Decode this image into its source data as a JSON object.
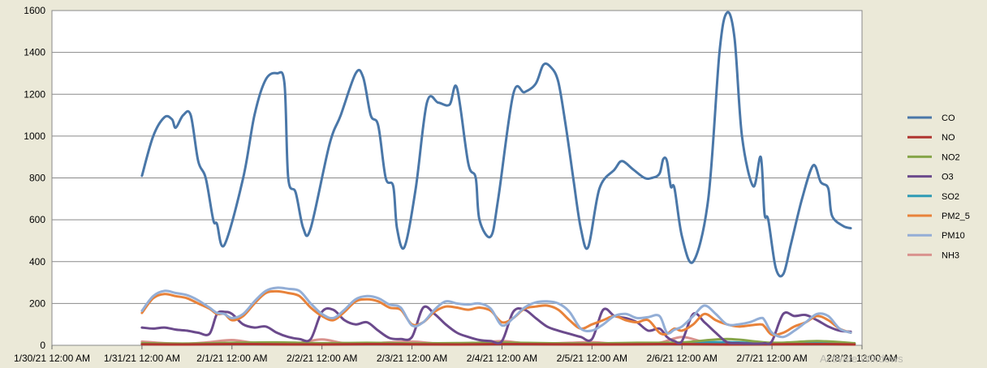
{
  "watermark": "Activate Windows",
  "chart_data": {
    "type": "line",
    "title": "",
    "xlabel": "",
    "ylabel": "",
    "ylim": [
      0,
      1600
    ],
    "yticks": [
      0,
      200,
      400,
      600,
      800,
      1000,
      1200,
      1400,
      1600
    ],
    "xticks": [
      "1/30/21 12:00 AM",
      "1/31/21 12:00 AM",
      "2/1/21 12:00 AM",
      "2/2/21 12:00 AM",
      "2/3/21 12:00 AM",
      "2/4/21 12:00 AM",
      "2/5/21 12:00 AM",
      "2/6/21 12:00 AM",
      "2/7/21 12:00 AM",
      "2/8/21 12:00 AM"
    ],
    "xlim": [
      "1/30/21 12:00 AM",
      "2/8/21 12:00 AM"
    ],
    "grid": true,
    "legend_position": "right",
    "series": [
      {
        "name": "CO",
        "color": "#4a77a8",
        "x": [
          "1/31/21 12:00 AM",
          "1/31/21 3:00 AM",
          "1/31/21 6:00 AM",
          "1/31/21 8:00 AM",
          "1/31/21 9:00 AM",
          "1/31/21 11:00 AM",
          "1/31/21 1:00 PM",
          "1/31/21 3:00 PM",
          "1/31/21 5:00 PM",
          "1/31/21 7:00 PM",
          "1/31/21 8:00 PM",
          "1/31/21 10:00 PM",
          "2/1/21 3:00 AM",
          "2/1/21 6:00 AM",
          "2/1/21 9:00 AM",
          "2/1/21 12:00 PM",
          "2/1/21 2:00 PM",
          "2/1/21 3:00 PM",
          "2/1/21 5:00 PM",
          "2/1/21 7:00 PM",
          "2/1/21 9:00 PM",
          "2/2/21 2:00 AM",
          "2/2/21 5:00 AM",
          "2/2/21 9:00 AM",
          "2/2/21 11:00 AM",
          "2/2/21 1:00 PM",
          "2/2/21 3:00 PM",
          "2/2/21 5:00 PM",
          "2/2/21 7:00 PM",
          "2/2/21 8:00 PM",
          "2/2/21 10:00 PM",
          "2/3/21 1:00 AM",
          "2/3/21 4:00 AM",
          "2/3/21 7:00 AM",
          "2/3/21 10:00 AM",
          "2/3/21 12:00 PM",
          "2/3/21 3:00 PM",
          "2/3/21 5:00 PM",
          "2/3/21 6:00 PM",
          "2/3/21 9:00 PM",
          "2/3/21 11:00 PM",
          "2/4/21 3:00 AM",
          "2/4/21 6:00 AM",
          "2/4/21 9:00 AM",
          "2/4/21 11:00 AM",
          "2/4/21 1:00 PM",
          "2/4/21 3:00 PM",
          "2/4/21 5:00 PM",
          "2/4/21 7:00 PM",
          "2/4/21 9:00 PM",
          "2/4/21 11:00 PM",
          "2/5/21 2:00 AM",
          "2/5/21 6:00 AM",
          "2/5/21 8:00 AM",
          "2/5/21 11:00 AM",
          "2/5/21 2:00 PM",
          "2/5/21 4:00 PM",
          "2/5/21 6:00 PM",
          "2/5/21 7:00 PM",
          "2/5/21 8:00 PM",
          "2/5/21 9:00 PM",
          "2/5/21 10:00 PM",
          "2/6/21 12:00 AM",
          "2/6/21 3:00 AM",
          "2/6/21 7:00 AM",
          "2/6/21 10:00 AM",
          "2/6/21 12:00 PM",
          "2/6/21 2:00 PM",
          "2/6/21 4:00 PM",
          "2/6/21 7:00 PM",
          "2/6/21 9:00 PM",
          "2/6/21 10:00 PM",
          "2/6/21 11:00 PM",
          "2/7/21 1:00 AM",
          "2/7/21 3:00 AM",
          "2/7/21 5:00 AM",
          "2/7/21 8:00 AM",
          "2/7/21 11:00 AM",
          "2/7/21 1:00 PM",
          "2/7/21 3:00 PM",
          "2/7/21 4:00 PM",
          "2/7/21 7:00 PM",
          "2/7/21 9:00 PM"
        ],
        "values": [
          810,
          1000,
          1090,
          1080,
          1040,
          1100,
          1100,
          880,
          800,
          600,
          580,
          480,
          800,
          1100,
          1270,
          1300,
          1250,
          800,
          730,
          560,
          560,
          960,
          1100,
          1300,
          1280,
          1100,
          1050,
          800,
          760,
          560,
          470,
          750,
          1160,
          1160,
          1150,
          1230,
          870,
          800,
          600,
          520,
          700,
          1200,
          1210,
          1250,
          1340,
          1330,
          1260,
          1050,
          800,
          560,
          470,
          750,
          840,
          880,
          840,
          800,
          800,
          820,
          890,
          880,
          760,
          750,
          520,
          400,
          700,
          1400,
          1590,
          1470,
          1000,
          760,
          900,
          630,
          600,
          370,
          340,
          480,
          700,
          860,
          780,
          750,
          620,
          570,
          560
        ]
      },
      {
        "name": "NO",
        "color": "#b0352f",
        "x": [
          "1/31/21 12:00 AM",
          "1/31/21 12:00 PM",
          "2/1/21 12:00 AM",
          "2/1/21 12:00 PM",
          "2/2/21 12:00 AM",
          "2/2/21 12:00 PM",
          "2/3/21 12:00 AM",
          "2/3/21 12:00 PM",
          "2/4/21 12:00 AM",
          "2/4/21 12:00 PM",
          "2/5/21 12:00 AM",
          "2/5/21 12:00 PM",
          "2/6/21 12:00 AM",
          "2/6/21 12:00 PM",
          "2/7/21 12:00 AM",
          "2/7/21 12:00 PM",
          "2/7/21 10:00 PM"
        ],
        "values": [
          5,
          4,
          6,
          5,
          4,
          6,
          5,
          4,
          6,
          5,
          4,
          5,
          6,
          4,
          5,
          6,
          4
        ]
      },
      {
        "name": "NO2",
        "color": "#86a548",
        "x": [
          "1/31/21 12:00 AM",
          "1/31/21 12:00 PM",
          "2/1/21 12:00 AM",
          "2/1/21 12:00 PM",
          "2/2/21 12:00 AM",
          "2/2/21 12:00 PM",
          "2/3/21 12:00 AM",
          "2/3/21 12:00 PM",
          "2/4/21 12:00 AM",
          "2/4/21 12:00 PM",
          "2/5/21 12:00 AM",
          "2/5/21 12:00 PM",
          "2/6/21 12:00 AM",
          "2/6/21 12:00 PM",
          "2/7/21 12:00 AM",
          "2/7/21 12:00 PM",
          "2/7/21 10:00 PM"
        ],
        "values": [
          10,
          8,
          12,
          14,
          10,
          12,
          9,
          11,
          13,
          10,
          9,
          12,
          14,
          30,
          12,
          20,
          10
        ]
      },
      {
        "name": "O3",
        "color": "#6b4a8c",
        "x": [
          "1/31/21 12:00 AM",
          "1/31/21 3:00 AM",
          "1/31/21 6:00 AM",
          "1/31/21 9:00 AM",
          "1/31/21 12:00 PM",
          "1/31/21 3:00 PM",
          "1/31/21 6:00 PM",
          "1/31/21 8:00 PM",
          "1/31/21 10:00 PM",
          "2/1/21 12:00 AM",
          "2/1/21 3:00 AM",
          "2/1/21 6:00 AM",
          "2/1/21 9:00 AM",
          "2/1/21 12:00 PM",
          "2/1/21 3:00 PM",
          "2/1/21 6:00 PM",
          "2/1/21 9:00 PM",
          "2/2/21 12:00 AM",
          "2/2/21 3:00 AM",
          "2/2/21 6:00 AM",
          "2/2/21 9:00 AM",
          "2/2/21 12:00 PM",
          "2/2/21 3:00 PM",
          "2/2/21 6:00 PM",
          "2/2/21 9:00 PM",
          "2/3/21 12:00 AM",
          "2/3/21 3:00 AM",
          "2/3/21 6:00 AM",
          "2/3/21 9:00 AM",
          "2/3/21 12:00 PM",
          "2/3/21 3:00 PM",
          "2/3/21 6:00 PM",
          "2/3/21 9:00 PM",
          "2/4/21 12:00 AM",
          "2/4/21 3:00 AM",
          "2/4/21 6:00 AM",
          "2/4/21 9:00 AM",
          "2/4/21 12:00 PM",
          "2/4/21 3:00 PM",
          "2/4/21 6:00 PM",
          "2/4/21 9:00 PM",
          "2/5/21 12:00 AM",
          "2/5/21 3:00 AM",
          "2/5/21 6:00 AM",
          "2/5/21 9:00 AM",
          "2/5/21 12:00 PM",
          "2/5/21 3:00 PM",
          "2/5/21 6:00 PM",
          "2/5/21 8:00 PM",
          "2/5/21 10:00 PM",
          "2/6/21 12:00 AM",
          "2/6/21 3:00 AM",
          "2/6/21 6:00 AM",
          "2/6/21 9:00 AM",
          "2/6/21 12:00 PM",
          "2/6/21 3:00 PM",
          "2/6/21 6:00 PM",
          "2/6/21 9:00 PM",
          "2/6/21 10:00 PM",
          "2/7/21 12:00 AM",
          "2/7/21 3:00 AM",
          "2/7/21 6:00 AM",
          "2/7/21 9:00 AM",
          "2/7/21 12:00 PM",
          "2/7/21 3:00 PM",
          "2/7/21 6:00 PM",
          "2/7/21 9:00 PM"
        ],
        "values": [
          85,
          80,
          85,
          75,
          70,
          60,
          55,
          150,
          160,
          150,
          100,
          85,
          90,
          60,
          40,
          30,
          30,
          160,
          170,
          120,
          100,
          110,
          70,
          35,
          30,
          40,
          180,
          150,
          100,
          60,
          40,
          25,
          20,
          20,
          160,
          170,
          130,
          90,
          70,
          55,
          40,
          30,
          170,
          140,
          130,
          110,
          70,
          80,
          40,
          20,
          20,
          150,
          110,
          60,
          15,
          10,
          8,
          8,
          10,
          20,
          150,
          140,
          145,
          120,
          90,
          70,
          65
        ]
      },
      {
        "name": "SO2",
        "color": "#2e9bb5",
        "x": [
          "1/31/21 12:00 AM",
          "1/31/21 12:00 PM",
          "2/1/21 12:00 AM",
          "2/1/21 12:00 PM",
          "2/2/21 12:00 AM",
          "2/2/21 12:00 PM",
          "2/3/21 12:00 AM",
          "2/3/21 12:00 PM",
          "2/4/21 12:00 AM",
          "2/4/21 12:00 PM",
          "2/5/21 12:00 AM",
          "2/5/21 12:00 PM",
          "2/6/21 12:00 AM",
          "2/6/21 12:00 PM",
          "2/7/21 12:00 AM",
          "2/7/21 12:00 PM",
          "2/7/21 10:00 PM"
        ],
        "values": [
          8,
          6,
          10,
          12,
          8,
          10,
          7,
          9,
          11,
          8,
          7,
          10,
          12,
          15,
          9,
          14,
          8
        ]
      },
      {
        "name": "PM2_5",
        "color": "#e8823a",
        "x": [
          "1/31/21 12:00 AM",
          "1/31/21 3:00 AM",
          "1/31/21 6:00 AM",
          "1/31/21 9:00 AM",
          "1/31/21 12:00 PM",
          "1/31/21 3:00 PM",
          "1/31/21 6:00 PM",
          "1/31/21 8:00 PM",
          "1/31/21 10:00 PM",
          "2/1/21 12:00 AM",
          "2/1/21 3:00 AM",
          "2/1/21 6:00 AM",
          "2/1/21 9:00 AM",
          "2/1/21 12:00 PM",
          "2/1/21 3:00 PM",
          "2/1/21 6:00 PM",
          "2/1/21 9:00 PM",
          "2/2/21 12:00 AM",
          "2/2/21 3:00 AM",
          "2/2/21 6:00 AM",
          "2/2/21 9:00 AM",
          "2/2/21 12:00 PM",
          "2/2/21 3:00 PM",
          "2/2/21 6:00 PM",
          "2/2/21 9:00 PM",
          "2/3/21 12:00 AM",
          "2/3/21 3:00 AM",
          "2/3/21 6:00 AM",
          "2/3/21 9:00 AM",
          "2/3/21 12:00 PM",
          "2/3/21 3:00 PM",
          "2/3/21 6:00 PM",
          "2/3/21 9:00 PM",
          "2/4/21 12:00 AM",
          "2/4/21 3:00 AM",
          "2/4/21 6:00 AM",
          "2/4/21 9:00 AM",
          "2/4/21 12:00 PM",
          "2/4/21 3:00 PM",
          "2/4/21 6:00 PM",
          "2/4/21 9:00 PM",
          "2/5/21 12:00 AM",
          "2/5/21 3:00 AM",
          "2/5/21 6:00 AM",
          "2/5/21 9:00 AM",
          "2/5/21 12:00 PM",
          "2/5/21 3:00 PM",
          "2/5/21 6:00 PM",
          "2/5/21 8:00 PM",
          "2/5/21 10:00 PM",
          "2/6/21 12:00 AM",
          "2/6/21 3:00 AM",
          "2/6/21 6:00 AM",
          "2/6/21 9:00 AM",
          "2/6/21 12:00 PM",
          "2/6/21 3:00 PM",
          "2/6/21 6:00 PM",
          "2/6/21 9:00 PM",
          "2/6/21 10:00 PM",
          "2/7/21 12:00 AM",
          "2/7/21 3:00 AM",
          "2/7/21 6:00 AM",
          "2/7/21 9:00 AM",
          "2/7/21 12:00 PM",
          "2/7/21 3:00 PM",
          "2/7/21 6:00 PM",
          "2/7/21 9:00 PM"
        ],
        "values": [
          155,
          225,
          245,
          235,
          225,
          200,
          175,
          150,
          150,
          120,
          140,
          200,
          250,
          258,
          250,
          235,
          180,
          140,
          120,
          160,
          210,
          220,
          210,
          180,
          170,
          100,
          110,
          160,
          185,
          180,
          170,
          180,
          165,
          110,
          130,
          175,
          185,
          190,
          170,
          120,
          80,
          100,
          120,
          140,
          120,
          110,
          120,
          60,
          55,
          80,
          70,
          100,
          150,
          120,
          100,
          90,
          95,
          100,
          90,
          50,
          60,
          90,
          110,
          140,
          120,
          80,
          60
        ]
      },
      {
        "name": "PM10",
        "color": "#93aed6",
        "x": [
          "1/31/21 12:00 AM",
          "1/31/21 3:00 AM",
          "1/31/21 6:00 AM",
          "1/31/21 9:00 AM",
          "1/31/21 12:00 PM",
          "1/31/21 3:00 PM",
          "1/31/21 6:00 PM",
          "1/31/21 8:00 PM",
          "1/31/21 10:00 PM",
          "2/1/21 12:00 AM",
          "2/1/21 3:00 AM",
          "2/1/21 6:00 AM",
          "2/1/21 9:00 AM",
          "2/1/21 12:00 PM",
          "2/1/21 3:00 PM",
          "2/1/21 6:00 PM",
          "2/1/21 9:00 PM",
          "2/2/21 12:00 AM",
          "2/2/21 3:00 AM",
          "2/2/21 6:00 AM",
          "2/2/21 9:00 AM",
          "2/2/21 12:00 PM",
          "2/2/21 3:00 PM",
          "2/2/21 6:00 PM",
          "2/2/21 9:00 PM",
          "2/3/21 12:00 AM",
          "2/3/21 3:00 AM",
          "2/3/21 6:00 AM",
          "2/3/21 9:00 AM",
          "2/3/21 12:00 PM",
          "2/3/21 3:00 PM",
          "2/3/21 6:00 PM",
          "2/3/21 9:00 PM",
          "2/4/21 12:00 AM",
          "2/4/21 3:00 AM",
          "2/4/21 6:00 AM",
          "2/4/21 9:00 AM",
          "2/4/21 12:00 PM",
          "2/4/21 3:00 PM",
          "2/4/21 6:00 PM",
          "2/4/21 9:00 PM",
          "2/5/21 12:00 AM",
          "2/5/21 3:00 AM",
          "2/5/21 6:00 AM",
          "2/5/21 9:00 AM",
          "2/5/21 12:00 PM",
          "2/5/21 3:00 PM",
          "2/5/21 6:00 PM",
          "2/5/21 8:00 PM",
          "2/5/21 10:00 PM",
          "2/6/21 12:00 AM",
          "2/6/21 3:00 AM",
          "2/6/21 6:00 AM",
          "2/6/21 9:00 AM",
          "2/6/21 12:00 PM",
          "2/6/21 3:00 PM",
          "2/6/21 6:00 PM",
          "2/6/21 9:00 PM",
          "2/6/21 10:00 PM",
          "2/7/21 12:00 AM",
          "2/7/21 3:00 AM",
          "2/7/21 6:00 AM",
          "2/7/21 9:00 AM",
          "2/7/21 12:00 PM",
          "2/7/21 3:00 PM",
          "2/7/21 6:00 PM",
          "2/7/21 9:00 PM"
        ],
        "values": [
          165,
          235,
          260,
          250,
          240,
          215,
          180,
          155,
          150,
          130,
          150,
          210,
          260,
          275,
          270,
          260,
          200,
          150,
          130,
          170,
          220,
          235,
          225,
          195,
          180,
          95,
          110,
          170,
          210,
          200,
          195,
          200,
          175,
          95,
          130,
          180,
          205,
          210,
          200,
          160,
          80,
          70,
          100,
          140,
          150,
          130,
          135,
          140,
          60,
          75,
          90,
          140,
          190,
          150,
          100,
          100,
          110,
          130,
          120,
          60,
          40,
          70,
          110,
          150,
          140,
          80,
          60
        ]
      },
      {
        "name": "NH3",
        "color": "#d9928e",
        "x": [
          "1/31/21 12:00 AM",
          "1/31/21 6:00 AM",
          "1/31/21 12:00 PM",
          "1/31/21 6:00 PM",
          "2/1/21 12:00 AM",
          "2/1/21 6:00 AM",
          "2/1/21 12:00 PM",
          "2/1/21 6:00 PM",
          "2/2/21 12:00 AM",
          "2/2/21 6:00 AM",
          "2/2/21 12:00 PM",
          "2/2/21 6:00 PM",
          "2/3/21 12:00 AM",
          "2/3/21 6:00 AM",
          "2/3/21 12:00 PM",
          "2/3/21 6:00 PM",
          "2/4/21 12:00 AM",
          "2/4/21 6:00 AM",
          "2/4/21 12:00 PM",
          "2/4/21 6:00 PM",
          "2/5/21 12:00 AM",
          "2/5/21 6:00 AM",
          "2/5/21 12:00 PM",
          "2/5/21 6:00 PM",
          "2/6/21 12:00 AM",
          "2/6/21 6:00 AM",
          "2/6/21 12:00 PM",
          "2/6/21 6:00 PM",
          "2/7/21 12:00 AM",
          "2/7/21 6:00 AM",
          "2/7/21 12:00 PM",
          "2/7/21 6:00 PM",
          "2/7/21 10:00 PM"
        ],
        "values": [
          18,
          10,
          8,
          15,
          25,
          12,
          10,
          12,
          28,
          10,
          8,
          14,
          18,
          10,
          9,
          12,
          20,
          10,
          9,
          12,
          15,
          8,
          10,
          12,
          40,
          15,
          8,
          10,
          12,
          8,
          15,
          10,
          8
        ]
      }
    ]
  }
}
